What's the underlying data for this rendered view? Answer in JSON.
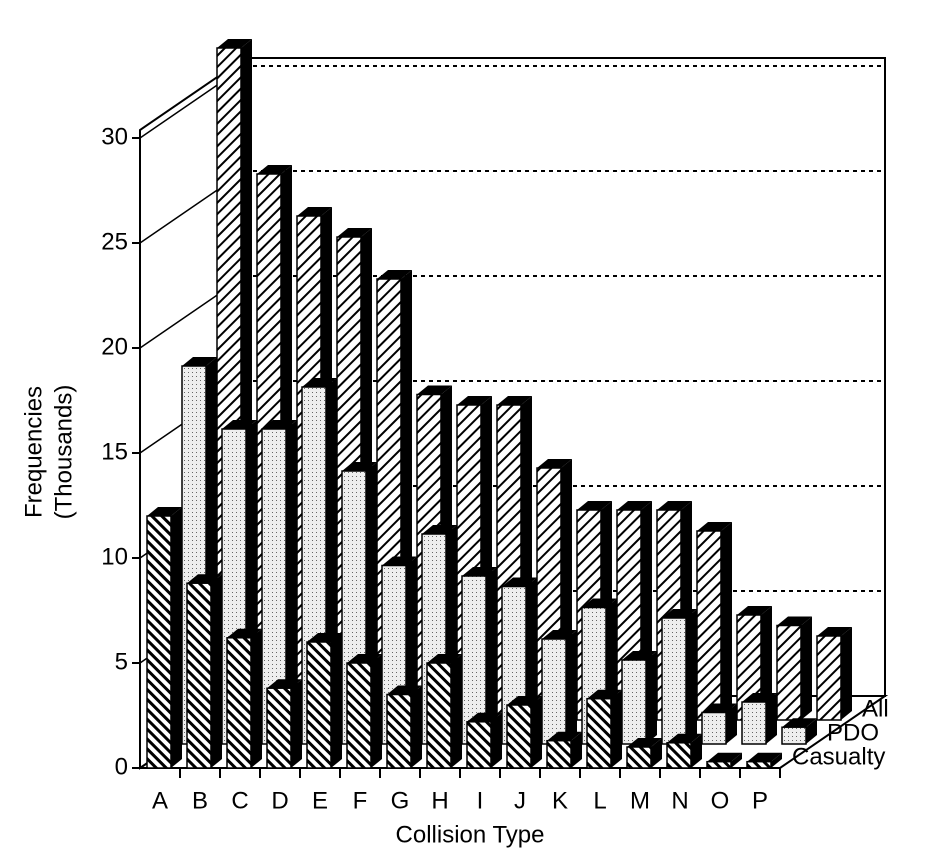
{
  "chart_data": {
    "type": "bar3d",
    "xlabel": "Collision Type",
    "ylabel": [
      "Frequencies",
      "(Thousands)"
    ],
    "categories": [
      "A",
      "B",
      "C",
      "D",
      "E",
      "F",
      "G",
      "H",
      "I",
      "J",
      "K",
      "L",
      "M",
      "N",
      "O",
      "P"
    ],
    "series": [
      {
        "name": "Casualty",
        "color": "#000000",
        "values": [
          12,
          8.8,
          6.2,
          3.8,
          6,
          5,
          3.5,
          5,
          2.2,
          3,
          1.3,
          3.3,
          1,
          1.2,
          0.3,
          0.3
        ]
      },
      {
        "name": "PDO",
        "color": "#000000",
        "values": [
          18,
          15,
          15,
          17,
          13,
          8.5,
          10,
          8,
          7.5,
          5,
          6.5,
          4,
          6,
          1.5,
          2,
          0.8
        ]
      },
      {
        "name": "All",
        "color": "#000000",
        "values": [
          32,
          26,
          24,
          23,
          21,
          15.5,
          15,
          15,
          12,
          10,
          10,
          10,
          9,
          5,
          4.5,
          4
        ]
      }
    ],
    "ylim": [
      0,
      30
    ],
    "yticks": [
      0,
      5,
      10,
      15,
      20,
      25,
      30
    ],
    "grid": true
  }
}
